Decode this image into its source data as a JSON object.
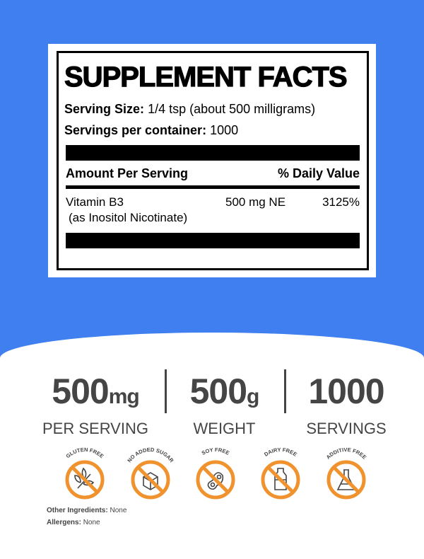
{
  "label": {
    "title": "SUPPLEMENT FACTS",
    "serving_size_label": "Serving Size:",
    "serving_size_value": "1/4 tsp (about 500 milligrams)",
    "servings_label": "Servings per container:",
    "servings_value": "1000",
    "amount_header": "Amount Per Serving",
    "dv_header": "% Daily Value",
    "rows": [
      {
        "name": "Vitamin B3",
        "sub": "(as Inositol Nicotinate)",
        "amount": "500 mg NE",
        "dv": "3125%"
      }
    ]
  },
  "stats": [
    {
      "value": "500",
      "unit": "mg",
      "label": "PER SERVING"
    },
    {
      "value": "500",
      "unit": "g",
      "label": "WEIGHT"
    },
    {
      "value": "1000",
      "unit": "",
      "label": "SERVINGS"
    }
  ],
  "badges": [
    {
      "text": "GLUTEN FREE",
      "icon": "wheat-icon"
    },
    {
      "text": "NO ADDED SUGAR",
      "icon": "sugar-cube-icon"
    },
    {
      "text": "SOY FREE",
      "icon": "soybean-icon"
    },
    {
      "text": "DAIRY FREE",
      "icon": "milk-bottle-icon"
    },
    {
      "text": "ADDITIVE FREE",
      "icon": "flask-icon"
    }
  ],
  "footer": {
    "ingredients_label": "Other Ingredients:",
    "ingredients_value": "None",
    "allergens_label": "Allergens:",
    "allergens_value": "None"
  },
  "colors": {
    "background": "#3f7ff0",
    "badge": "#f0932f",
    "text": "#454545"
  }
}
